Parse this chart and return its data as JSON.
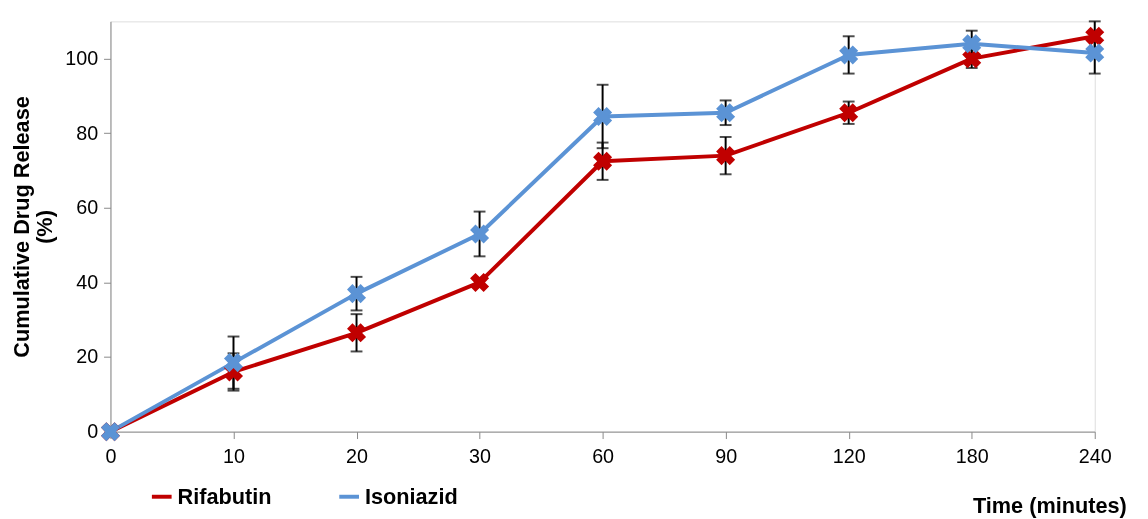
{
  "chart_data": {
    "type": "line",
    "xlabel": "Time (minutes)",
    "ylabel": "Cumulative Drug Release\n(%)",
    "categories": [
      "0",
      "10",
      "20",
      "30",
      "60",
      "90",
      "120",
      "180",
      "240"
    ],
    "ylim": [
      0,
      110
    ],
    "yticks": [
      0,
      20,
      40,
      60,
      80,
      100
    ],
    "grid": false,
    "legend": "bottom left",
    "marker": "cross",
    "line_style": "solid",
    "series": [
      {
        "name": "Rifabutin",
        "color": "#c00000",
        "values": [
          0,
          16,
          26.5,
          40,
          72.5,
          74,
          85.5,
          100,
          106
        ],
        "errors": [
          null,
          5,
          5,
          null,
          5,
          5,
          3,
          2.5,
          4
        ]
      },
      {
        "name": "Isoniazid",
        "color": "#5b93d5",
        "values": [
          0,
          18.5,
          37,
          53,
          84.5,
          85.5,
          101,
          104,
          101.5
        ],
        "errors": [
          null,
          7,
          4.5,
          6,
          8.5,
          3.3,
          5,
          3.5,
          5.5
        ]
      }
    ]
  }
}
